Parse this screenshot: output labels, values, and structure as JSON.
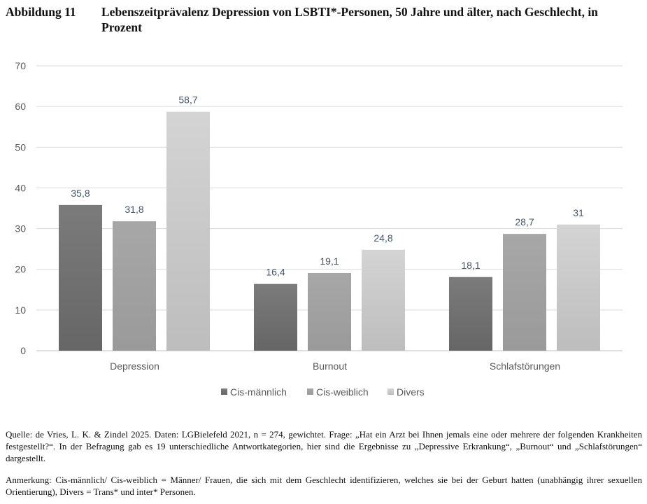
{
  "figure": {
    "number": "Abbildung 11",
    "title": "Lebenszeitprävalenz Depression von LSBTI*-Personen, 50 Jahre und älter, nach Geschlecht, in Prozent"
  },
  "chart_data": {
    "type": "bar",
    "title": "",
    "xlabel": "",
    "ylabel": "",
    "categories": [
      "Depression",
      "Burnout",
      "Schlafstörungen"
    ],
    "series": [
      {
        "name": "Cis-männlich",
        "values": [
          35.8,
          16.4,
          18.1
        ],
        "labels": [
          "35,8",
          "16,4",
          "18,1"
        ],
        "color_top": "#7b7b7b",
        "color_bottom": "#666666"
      },
      {
        "name": "Cis-weiblich",
        "values": [
          31.8,
          19.1,
          28.7
        ],
        "labels": [
          "31,8",
          "19,1",
          "28,7"
        ],
        "color_top": "#a7a7a7",
        "color_bottom": "#9a9a9a"
      },
      {
        "name": "Divers",
        "values": [
          58.7,
          24.8,
          31
        ],
        "labels": [
          "58,7",
          "24,8",
          "31"
        ],
        "color_top": "#d4d4d4",
        "color_bottom": "#bdbdbd"
      }
    ],
    "ylim": [
      0,
      70
    ],
    "yticks": [
      0,
      10,
      20,
      30,
      40,
      50,
      60,
      70
    ],
    "grid": true,
    "legend": "bottom",
    "label_color": "#44546a",
    "tick_color": "#595959"
  },
  "notes": {
    "source": "Quelle: de Vries, L. K. & Zindel 2025. Daten: LGBielefeld 2021, n = 274, gewichtet. Frage: „Hat ein Arzt bei Ihnen jemals eine oder mehrere der folgenden Krankheiten festgestellt?“. In der Befragung gab es 19 unterschiedliche Antwortkategorien, hier sind die Ergebnisse zu „Depressive Erkrankung“, „Burnout“ und „Schlafstörungen“ dargestellt.",
    "remark": "Anmerkung: Cis-männlich/ Cis-weiblich = Männer/ Frauen, die sich mit dem Geschlecht identifizieren, welches sie bei der Geburt hatten (unabhängig ihrer sexuellen Orientierung), Divers = Trans* und inter* Personen."
  }
}
